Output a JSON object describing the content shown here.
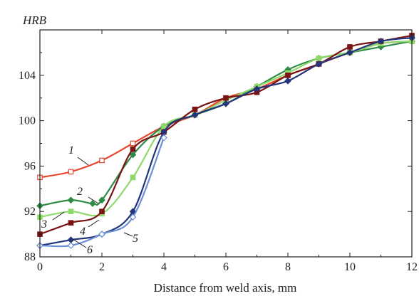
{
  "chart_data": {
    "type": "line",
    "title": "",
    "xlabel": "Distance from weld axis, mm",
    "ylabel": "HRB",
    "xlim": [
      0,
      12
    ],
    "ylim": [
      88,
      108
    ],
    "xticks": [
      0,
      2,
      4,
      6,
      8,
      10,
      12
    ],
    "yticks": [
      88,
      92,
      96,
      100,
      104
    ],
    "grid": false,
    "series": [
      {
        "name": "1",
        "color": "#e8452c",
        "marker": "square-open",
        "x": [
          0,
          1,
          2,
          3,
          4,
          5,
          6,
          7,
          8,
          9,
          10,
          11,
          12
        ],
        "values": [
          95.0,
          95.5,
          96.5,
          98.0,
          99.5,
          100.5,
          102.0,
          102.8,
          104.0,
          105.0,
          106.0,
          106.8,
          107.0
        ]
      },
      {
        "name": "2",
        "color": "#2e8b46",
        "marker": "diamond",
        "x": [
          0,
          1,
          1.7,
          2,
          3,
          4,
          5,
          6,
          7,
          8,
          9,
          10,
          11,
          12
        ],
        "values": [
          92.5,
          93.0,
          92.7,
          93.0,
          97.0,
          99.5,
          100.5,
          101.5,
          103.0,
          104.5,
          105.5,
          106.0,
          106.5,
          107.0
        ]
      },
      {
        "name": "3",
        "color": "#8fd96a",
        "marker": "square",
        "x": [
          0,
          1,
          2,
          3,
          4,
          5,
          6,
          7,
          8,
          9,
          10,
          11,
          12
        ],
        "values": [
          91.5,
          92.0,
          91.8,
          95.0,
          99.5,
          100.5,
          101.8,
          103.0,
          104.2,
          105.5,
          106.0,
          106.8,
          107.0
        ]
      },
      {
        "name": "4",
        "color": "#7a1414",
        "marker": "square",
        "x": [
          0,
          1,
          2,
          3,
          4,
          5,
          6,
          7,
          8,
          9,
          10,
          11,
          12
        ],
        "values": [
          90.0,
          91.0,
          92.0,
          97.5,
          99.0,
          101.0,
          102.0,
          102.5,
          104.0,
          105.0,
          106.5,
          107.0,
          107.5
        ]
      },
      {
        "name": "5",
        "color": "#23357a",
        "marker": "diamond",
        "x": [
          0,
          1,
          2,
          3,
          4,
          5,
          6,
          7,
          8,
          9,
          10,
          11,
          12
        ],
        "values": [
          89.0,
          89.5,
          90.0,
          92.0,
          99.0,
          100.5,
          101.5,
          102.8,
          103.5,
          105.0,
          106.0,
          107.0,
          107.3
        ]
      },
      {
        "name": "6",
        "color": "#6b8ed6",
        "marker": "diamond-open",
        "x": [
          0,
          1,
          2,
          3,
          4
        ],
        "values": [
          89.0,
          89.0,
          90.0,
          91.5,
          98.5
        ]
      }
    ]
  }
}
